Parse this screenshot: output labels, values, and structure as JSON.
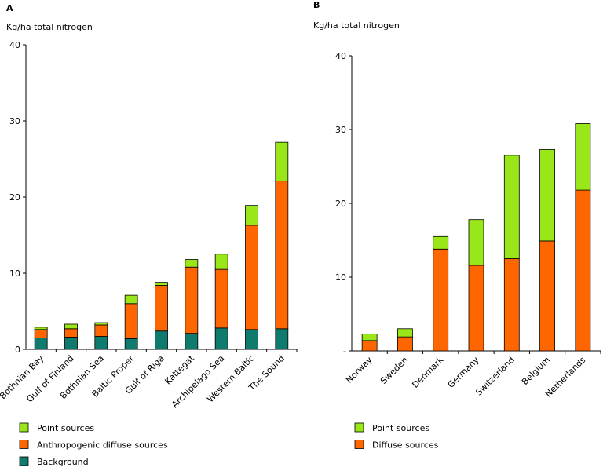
{
  "chart_data": [
    {
      "type": "bar",
      "stacked": true,
      "panel": "A",
      "ylabel": "Kg/ha total nitrogen",
      "ylim": [
        0,
        40
      ],
      "yticks": [
        0,
        10,
        20,
        30,
        40
      ],
      "categories": [
        "Bothnian Bay",
        "Gulf of Finland",
        "Bothnian Sea",
        "Baltic Proper",
        "Gulf of Riga",
        "Kattegat",
        "Archipelago Sea",
        "Western Baltic",
        "The Sound"
      ],
      "series": [
        {
          "name": "Background",
          "color": "#0f7a6e",
          "values": [
            1.5,
            1.6,
            1.7,
            1.4,
            2.4,
            2.1,
            2.8,
            2.6,
            2.7
          ]
        },
        {
          "name": "Anthropogenic diffuse sources",
          "color": "#ff6600",
          "values": [
            1.1,
            1.1,
            1.5,
            4.6,
            6.0,
            8.7,
            7.7,
            13.7,
            19.4
          ]
        },
        {
          "name": "Point sources",
          "color": "#99e619",
          "values": [
            0.3,
            0.6,
            0.3,
            1.1,
            0.4,
            1.0,
            2.0,
            2.6,
            5.1
          ]
        }
      ],
      "legend": [
        "Point sources",
        "Anthropogenic diffuse sources",
        "Background"
      ]
    },
    {
      "type": "bar",
      "stacked": true,
      "panel": "B",
      "ylabel": "Kg/ha total nitrogen",
      "ylim": [
        0,
        40
      ],
      "yticks": [
        0,
        10,
        20,
        30,
        40
      ],
      "ytick_labels": [
        "-",
        "10",
        "20",
        "30",
        "40"
      ],
      "categories": [
        "Norway",
        "Sweden",
        "Denmark",
        "Germany",
        "Switzerland",
        "Belgium",
        "Netherlands"
      ],
      "series": [
        {
          "name": "Diffuse sources",
          "color": "#ff6600",
          "values": [
            1.4,
            1.9,
            13.8,
            11.6,
            12.5,
            14.9,
            21.8
          ]
        },
        {
          "name": "Point sources",
          "color": "#99e619",
          "values": [
            0.9,
            1.1,
            1.7,
            6.2,
            14.0,
            12.4,
            9.0
          ]
        }
      ],
      "legend": [
        "Point sources",
        "Diffuse sources"
      ]
    }
  ]
}
